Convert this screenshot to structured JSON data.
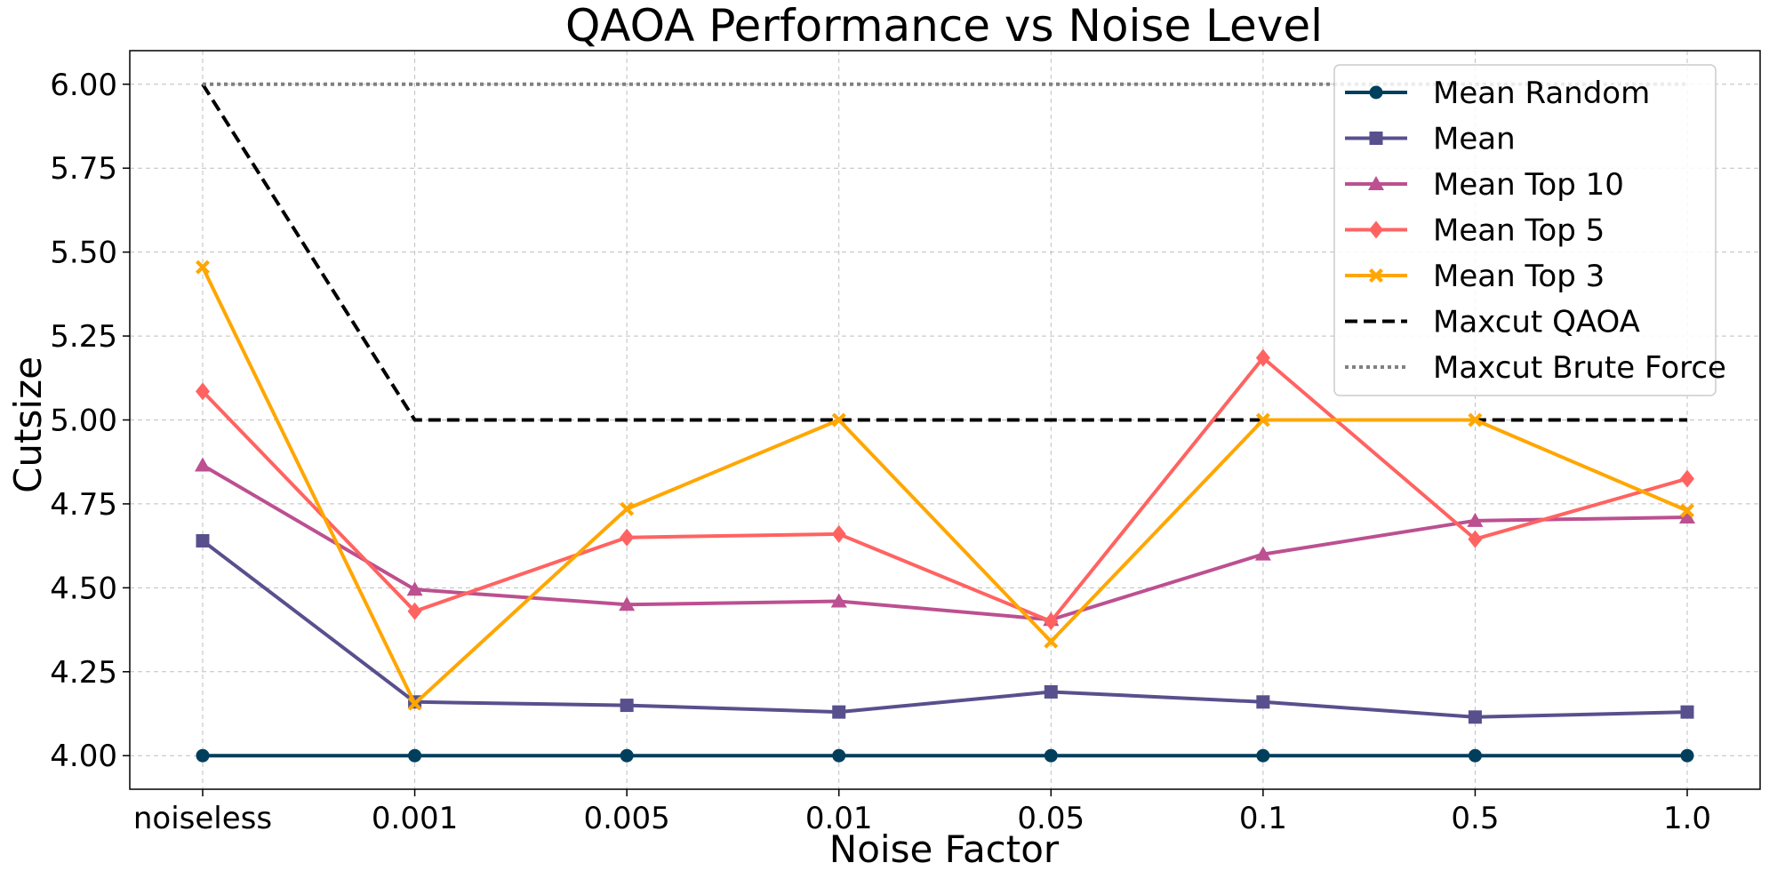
{
  "chart_data": {
    "type": "line",
    "title": "QAOA Performance vs Noise Level",
    "xlabel": "Noise Factor",
    "ylabel": "Cutsize",
    "categories": [
      "noiseless",
      "0.001",
      "0.005",
      "0.01",
      "0.05",
      "0.1",
      "0.5",
      "1.0"
    ],
    "ylim": [
      3.9,
      6.1
    ],
    "yticks": [
      "4.00",
      "4.25",
      "4.50",
      "4.75",
      "5.00",
      "5.25",
      "5.50",
      "5.75",
      "6.00"
    ],
    "grid": true,
    "legend_position": "top-right",
    "series": [
      {
        "name": "Mean Random",
        "color": "#003f5c",
        "marker": "circle",
        "line": "solid",
        "values": [
          4.0,
          4.0,
          4.0,
          4.0,
          4.0,
          4.0,
          4.0,
          4.0
        ]
      },
      {
        "name": "Mean",
        "color": "#58508d",
        "marker": "square",
        "line": "solid",
        "values": [
          4.64,
          4.16,
          4.15,
          4.13,
          4.19,
          4.16,
          4.115,
          4.13
        ]
      },
      {
        "name": "Mean Top 10",
        "color": "#bc5090",
        "marker": "triangle",
        "line": "solid",
        "values": [
          4.865,
          4.495,
          4.45,
          4.46,
          4.405,
          4.6,
          4.7,
          4.71
        ]
      },
      {
        "name": "Mean Top 5",
        "color": "#ff6361",
        "marker": "diamond",
        "line": "solid",
        "values": [
          5.085,
          4.43,
          4.65,
          4.66,
          4.4,
          5.185,
          4.645,
          4.825
        ]
      },
      {
        "name": "Mean Top 3",
        "color": "#ffa600",
        "marker": "x",
        "line": "solid",
        "values": [
          5.455,
          4.155,
          4.735,
          5.0,
          4.34,
          5.0,
          5.0,
          4.73
        ]
      },
      {
        "name": "Maxcut QAOA",
        "color": "#000000",
        "marker": "none",
        "line": "dashed",
        "values": [
          6.0,
          5.0,
          5.0,
          5.0,
          5.0,
          5.0,
          5.0,
          5.0
        ]
      },
      {
        "name": "Maxcut Brute Force",
        "color": "#808080",
        "marker": "none",
        "line": "dotted",
        "values": [
          6.0,
          6.0,
          6.0,
          6.0,
          6.0,
          6.0,
          6.0,
          6.0
        ]
      }
    ]
  }
}
